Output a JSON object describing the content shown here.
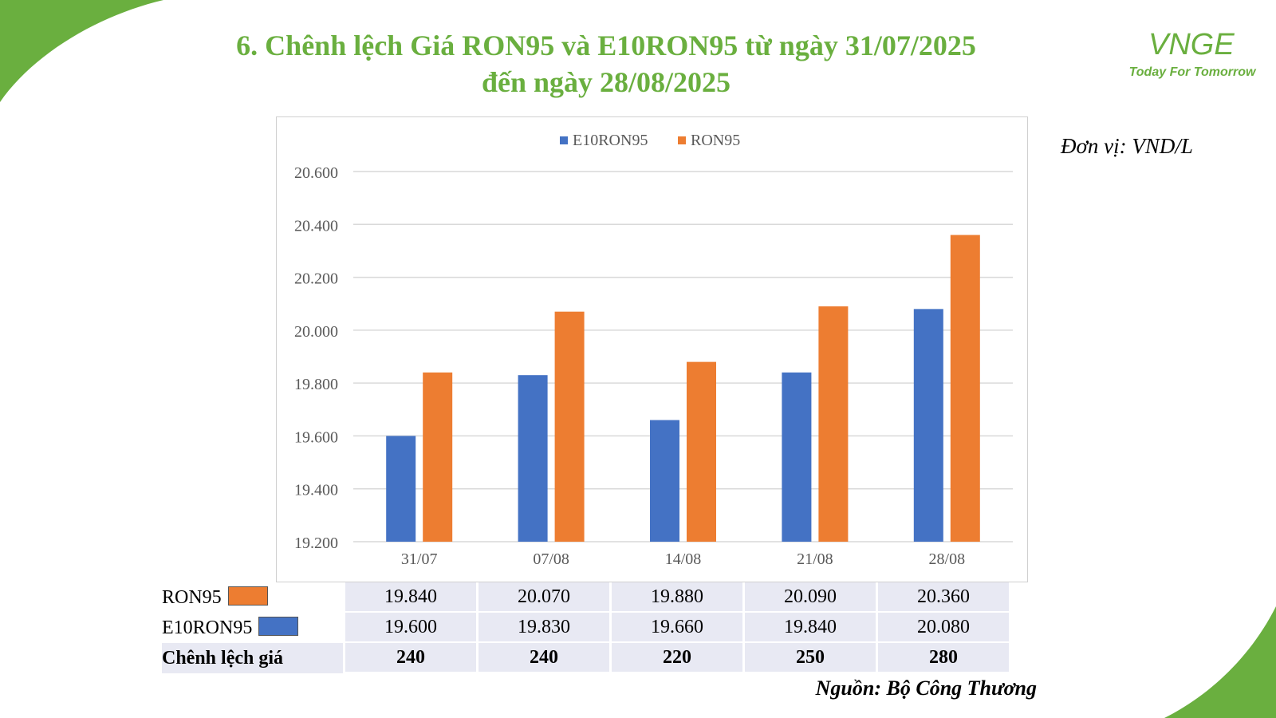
{
  "title": {
    "line1": "6. Chênh lệch Giá RON95 và E10RON95 từ ngày 31/07/2025",
    "line2": "đến ngày 28/08/2025"
  },
  "logo": {
    "mark": "VNGE",
    "tagline": "Today For Tomorrow"
  },
  "unit": "Đơn vị: VND/L",
  "source": "Nguồn: Bộ Công Thương",
  "colors": {
    "brand_green": "#6aaf3f",
    "e10": "#4472c4",
    "ron95": "#ed7d31"
  },
  "chart_data": {
    "type": "bar",
    "categories": [
      "31/07",
      "07/08",
      "14/08",
      "21/08",
      "28/08"
    ],
    "series": [
      {
        "name": "E10RON95",
        "values": [
          19600,
          19830,
          19660,
          19840,
          20080
        ],
        "color": "#4472c4"
      },
      {
        "name": "RON95",
        "values": [
          19840,
          20070,
          19880,
          20090,
          20360
        ],
        "color": "#ed7d31"
      }
    ],
    "ylim": [
      19200,
      20600
    ],
    "yticks": [
      "19.200",
      "19.400",
      "19.600",
      "19.800",
      "20.000",
      "20.200",
      "20.400",
      "20.600"
    ],
    "grid": true,
    "legend": "top-center"
  },
  "table": {
    "rows": [
      {
        "label": "RON95",
        "swatch": "#ed7d31",
        "values": [
          "19.840",
          "20.070",
          "19.880",
          "20.090",
          "20.360"
        ]
      },
      {
        "label": "E10RON95",
        "swatch": "#4472c4",
        "values": [
          "19.600",
          "19.830",
          "19.660",
          "19.840",
          "20.080"
        ]
      },
      {
        "label": "Chênh lệch giá",
        "values": [
          "240",
          "240",
          "220",
          "250",
          "280"
        ]
      }
    ]
  }
}
